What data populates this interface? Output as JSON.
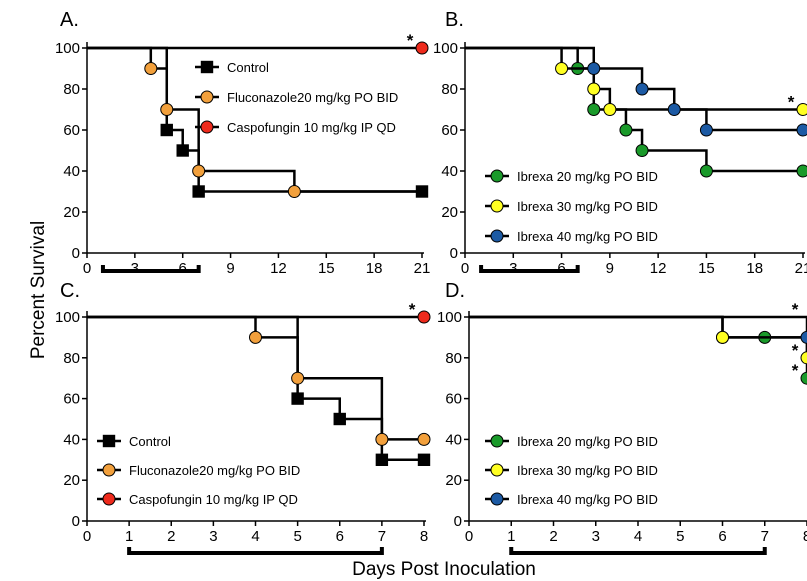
{
  "figure": {
    "ylabel": "Percent Survival",
    "xlabel": "Days Post Inoculation"
  },
  "colors": {
    "control": "#000000",
    "fluconazole": "#f2a03c",
    "caspofungin": "#ee2a1c",
    "ibrexa20": "#1a9a2a",
    "ibrexa30": "#ffff22",
    "ibrexa40": "#1c5aa4"
  },
  "chart_data": [
    {
      "panel": "A.",
      "type": "line",
      "step": true,
      "xlim": [
        0,
        21
      ],
      "ylim": [
        0,
        100
      ],
      "x_ticks": [
        0,
        3,
        6,
        9,
        12,
        15,
        18,
        21
      ],
      "y_ticks": [
        0,
        20,
        40,
        60,
        80,
        100
      ],
      "treatment_bracket_days": [
        1,
        7
      ],
      "legend_position": "top-right",
      "series": [
        {
          "name": "Control",
          "color_key": "control",
          "marker": "square",
          "x": [
            0,
            5,
            6,
            7,
            21
          ],
          "y": [
            100,
            60,
            50,
            30,
            30
          ],
          "censor_x": [
            21
          ]
        },
        {
          "name": "Fluconazole20 mg/kg PO BID",
          "color_key": "fluconazole",
          "marker": "circle",
          "x": [
            0,
            4,
            5,
            7,
            13,
            21
          ],
          "y": [
            100,
            90,
            70,
            40,
            30,
            30
          ],
          "censor_x": []
        },
        {
          "name": "Caspofungin 10 mg/kg IP QD",
          "color_key": "caspofungin",
          "marker": "circle",
          "x": [
            0,
            21
          ],
          "y": [
            100,
            100
          ],
          "censor_x": [
            21
          ]
        }
      ],
      "annotations": [
        {
          "text": "*",
          "x": 21,
          "y": 100
        }
      ]
    },
    {
      "panel": "B.",
      "type": "line",
      "step": true,
      "xlim": [
        0,
        21
      ],
      "ylim": [
        0,
        100
      ],
      "x_ticks": [
        0,
        3,
        6,
        9,
        12,
        15,
        18,
        21
      ],
      "y_ticks": [
        0,
        20,
        40,
        60,
        80,
        100
      ],
      "treatment_bracket_days": [
        1,
        7
      ],
      "legend_position": "bottom-left",
      "series": [
        {
          "name": "Ibrexa 20 mg/kg PO BID",
          "color_key": "ibrexa20",
          "marker": "circle",
          "x": [
            0,
            7,
            8,
            10,
            11,
            15,
            21
          ],
          "y": [
            100,
            90,
            70,
            60,
            50,
            40,
            40
          ],
          "censor_x": [
            21
          ]
        },
        {
          "name": "Ibrexa 30 mg/kg PO BID",
          "color_key": "ibrexa30",
          "marker": "circle",
          "x": [
            0,
            6,
            8,
            9,
            21
          ],
          "y": [
            100,
            90,
            80,
            70,
            70
          ],
          "censor_x": [
            21
          ]
        },
        {
          "name": "Ibrexa 40 mg/kg PO BID",
          "color_key": "ibrexa40",
          "marker": "circle",
          "x": [
            0,
            8,
            11,
            13,
            15,
            21
          ],
          "y": [
            100,
            90,
            80,
            70,
            60,
            60
          ],
          "censor_x": [
            21
          ]
        }
      ],
      "annotations": [
        {
          "text": "*",
          "x": 21,
          "y": 70
        }
      ]
    },
    {
      "panel": "C.",
      "type": "line",
      "step": true,
      "xlim": [
        0,
        8
      ],
      "ylim": [
        0,
        100
      ],
      "x_ticks": [
        0,
        1,
        2,
        3,
        4,
        5,
        6,
        7,
        8
      ],
      "y_ticks": [
        0,
        20,
        40,
        60,
        80,
        100
      ],
      "treatment_bracket_days": [
        1,
        7
      ],
      "legend_position": "bottom-left",
      "series": [
        {
          "name": "Control",
          "color_key": "control",
          "marker": "square",
          "x": [
            0,
            5,
            6,
            7,
            8
          ],
          "y": [
            100,
            60,
            50,
            30,
            30
          ],
          "censor_x": [
            8
          ]
        },
        {
          "name": "Fluconazole20 mg/kg PO BID",
          "color_key": "fluconazole",
          "marker": "circle",
          "x": [
            0,
            4,
            5,
            7,
            8
          ],
          "y": [
            100,
            90,
            70,
            40,
            40
          ],
          "censor_x": [
            8
          ]
        },
        {
          "name": "Caspofungin 10 mg/kg IP QD",
          "color_key": "caspofungin",
          "marker": "circle",
          "x": [
            0,
            8
          ],
          "y": [
            100,
            100
          ],
          "censor_x": [
            8
          ]
        }
      ],
      "annotations": [
        {
          "text": "*",
          "x": 8,
          "y": 100
        }
      ]
    },
    {
      "panel": "D.",
      "type": "line",
      "step": true,
      "xlim": [
        0,
        8
      ],
      "ylim": [
        0,
        100
      ],
      "x_ticks": [
        0,
        1,
        2,
        3,
        4,
        5,
        6,
        7,
        8
      ],
      "y_ticks": [
        0,
        20,
        40,
        60,
        80,
        100
      ],
      "treatment_bracket_days": [
        1,
        7
      ],
      "legend_position": "bottom-left",
      "series": [
        {
          "name": "Ibrexa 20 mg/kg PO BID",
          "color_key": "ibrexa20",
          "marker": "circle",
          "x": [
            0,
            6,
            7,
            8
          ],
          "y": [
            100,
            90,
            90,
            70
          ],
          "censor_x": [
            8
          ]
        },
        {
          "name": "Ibrexa 30 mg/kg PO BID",
          "color_key": "ibrexa30",
          "marker": "circle",
          "x": [
            0,
            6,
            8
          ],
          "y": [
            100,
            90,
            80
          ],
          "censor_x": [
            8
          ]
        },
        {
          "name": "Ibrexa 40 mg/kg PO BID",
          "color_key": "ibrexa40",
          "marker": "circle",
          "x": [
            0,
            8
          ],
          "y": [
            100,
            90
          ],
          "censor_x": [
            8
          ]
        }
      ],
      "annotations": [
        {
          "text": "*",
          "x": 8,
          "y": 100
        },
        {
          "text": "*",
          "x": 8,
          "y": 80
        },
        {
          "text": "*",
          "x": 8,
          "y": 70
        }
      ]
    }
  ]
}
